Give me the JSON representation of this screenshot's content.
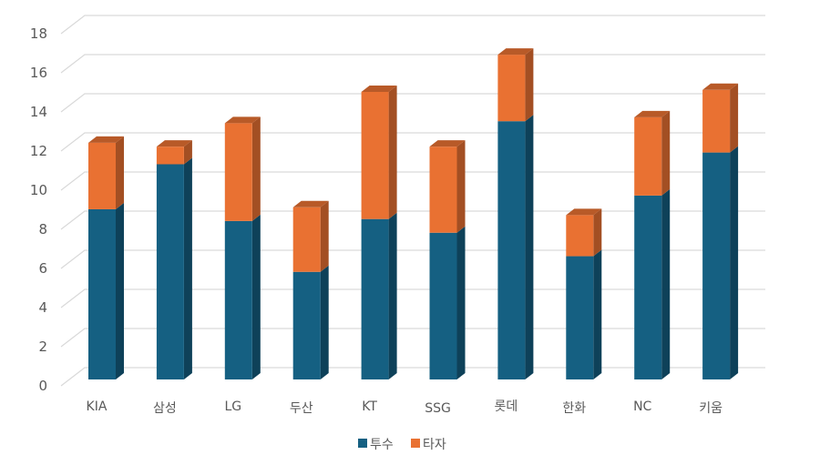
{
  "chart_data": {
    "type": "bar",
    "subtype": "stacked-3d",
    "title": "",
    "xlabel": "",
    "ylabel": "",
    "ylim": [
      0,
      18
    ],
    "yticks": [
      0,
      2,
      4,
      6,
      8,
      10,
      12,
      14,
      16,
      18
    ],
    "grid": true,
    "legend_position": "bottom",
    "categories": [
      "KIA",
      "삼성",
      "LG",
      "두산",
      "KT",
      "SSG",
      "롯데",
      "한화",
      "NC",
      "키움"
    ],
    "series": [
      {
        "name": "투수",
        "color": "#156082",
        "side_color": "#0e4159",
        "top_color": "#124f6b",
        "values": [
          8.7,
          11.0,
          8.1,
          5.5,
          8.2,
          7.5,
          13.2,
          6.3,
          9.4,
          11.6
        ]
      },
      {
        "name": "타자",
        "color": "#e97132",
        "side_color": "#a34f23",
        "top_color": "#b85a28",
        "values": [
          3.4,
          0.9,
          5.0,
          3.3,
          6.5,
          4.4,
          3.4,
          2.1,
          4.0,
          3.2
        ]
      }
    ]
  },
  "legend": {
    "items": [
      {
        "label": "투수",
        "color": "#156082"
      },
      {
        "label": "타자",
        "color": "#e97132"
      }
    ]
  }
}
